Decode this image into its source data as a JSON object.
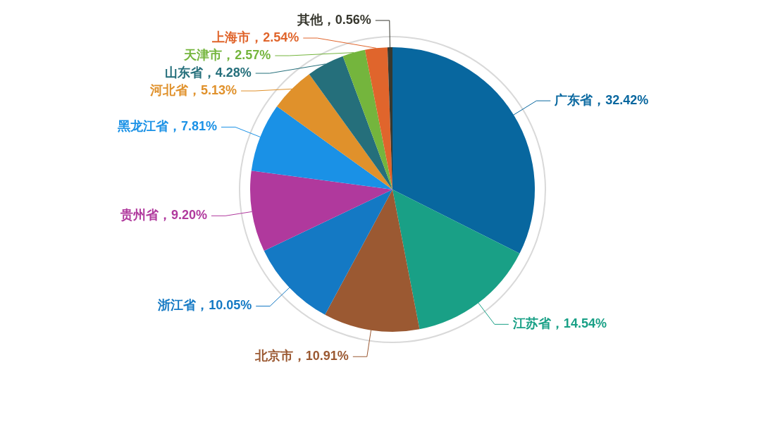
{
  "chart_data": {
    "type": "pie",
    "categories": [
      "广东省",
      "江苏省",
      "北京市",
      "浙江省",
      "贵州省",
      "黑龙江省",
      "河北省",
      "山东省",
      "天津市",
      "上海市",
      "其他"
    ],
    "values": [
      32.42,
      14.54,
      10.91,
      10.05,
      9.2,
      7.81,
      5.13,
      4.28,
      2.57,
      2.54,
      0.56
    ],
    "colors": [
      "#08679f",
      "#19a086",
      "#9b5932",
      "#1479c4",
      "#b0399d",
      "#1a91e6",
      "#e0912b",
      "#256f7b",
      "#74b53d",
      "#e0652c",
      "#38382f"
    ],
    "value_labels": [
      "，32.42%",
      "，14.54%",
      "，10.91%",
      "，10.05%",
      "，9.20%",
      "，7.81%",
      "，5.13%",
      "，4.28%",
      "，2.57%",
      "，2.54%",
      "，0.56%"
    ]
  }
}
